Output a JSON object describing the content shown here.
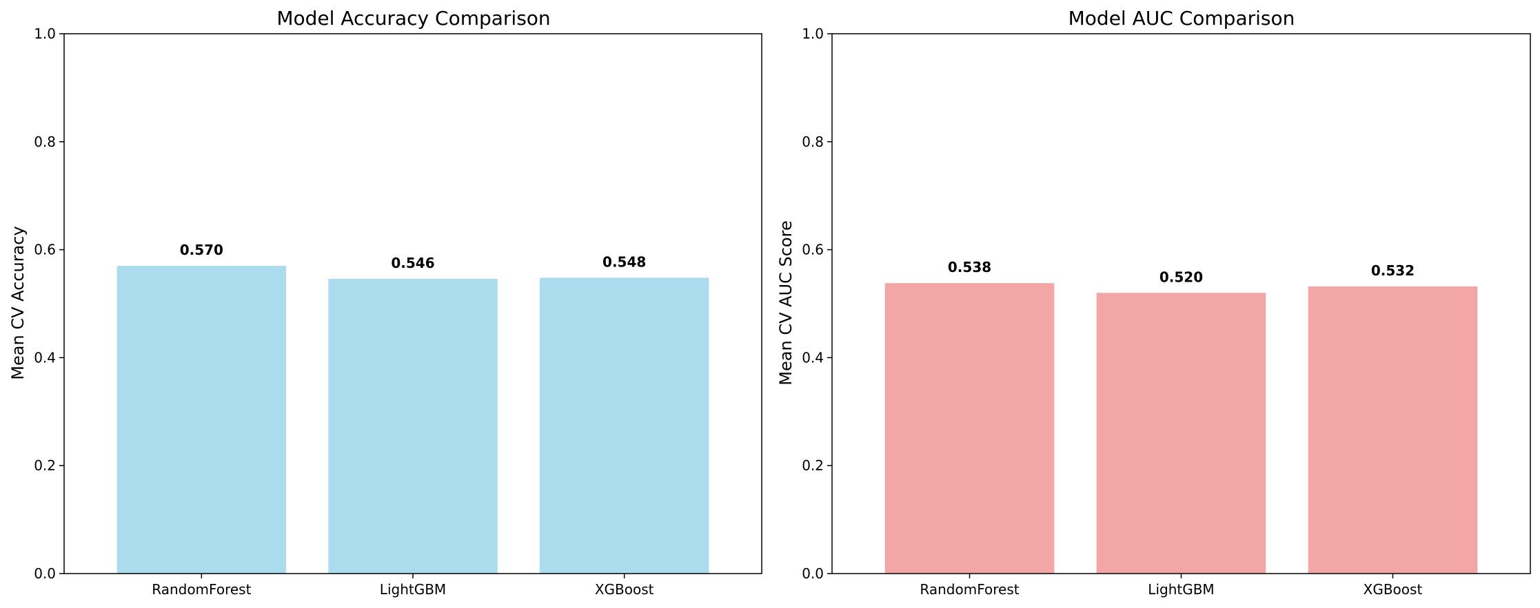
{
  "chart_data": [
    {
      "type": "bar",
      "title": "Model Accuracy Comparison",
      "xlabel": "",
      "ylabel": "Mean CV Accuracy",
      "categories": [
        "RandomForest",
        "LightGBM",
        "XGBoost"
      ],
      "values": [
        0.57,
        0.546,
        0.548
      ],
      "data_labels": [
        "0.570",
        "0.546",
        "0.548"
      ],
      "ylim": [
        0,
        1.0
      ],
      "yticks": [
        "0.0",
        "0.2",
        "0.4",
        "0.6",
        "0.8",
        "1.0"
      ],
      "color": "#aadcee",
      "grid": false,
      "legend": "none"
    },
    {
      "type": "bar",
      "title": "Model AUC Comparison",
      "xlabel": "",
      "ylabel": "Mean CV AUC Score",
      "categories": [
        "RandomForest",
        "LightGBM",
        "XGBoost"
      ],
      "values": [
        0.538,
        0.52,
        0.532
      ],
      "data_labels": [
        "0.538",
        "0.520",
        "0.532"
      ],
      "ylim": [
        0,
        1.0
      ],
      "yticks": [
        "0.0",
        "0.2",
        "0.4",
        "0.6",
        "0.8",
        "1.0"
      ],
      "color": "#f3a6a6",
      "grid": false,
      "legend": "none"
    }
  ]
}
